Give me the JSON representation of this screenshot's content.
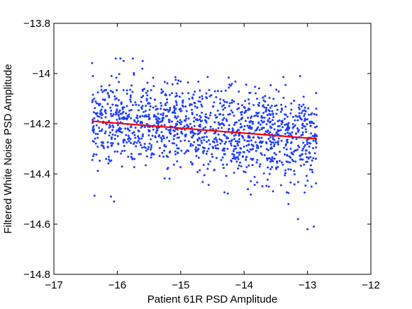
{
  "chart_data": {
    "type": "scatter",
    "xlabel": "Patient 61R PSD Amplitude",
    "ylabel": "Filtered White Noise PSD Amplitude",
    "xlim": [
      -17,
      -12
    ],
    "ylim": [
      -14.8,
      -13.8
    ],
    "x_ticks": [
      -17,
      -16,
      -15,
      -14,
      -13,
      -12
    ],
    "y_ticks": [
      -14.8,
      -14.6,
      -14.4,
      -14.2,
      -14,
      -13.8
    ],
    "x_tick_labels": [
      "−17",
      "−16",
      "−15",
      "−14",
      "−13",
      "−12"
    ],
    "y_tick_labels": [
      "−14.8",
      "−14.6",
      "−14.4",
      "−14.2",
      "−14",
      "−13.8"
    ],
    "grid": false,
    "legend": "none",
    "series": [
      {
        "kind": "points",
        "color": "#1f3fff",
        "n_points": 1400,
        "x_range": [
          -16.4,
          -12.85
        ],
        "y_center_at_x_min": -14.19,
        "y_center_at_x_max": -14.26,
        "y_spread": 0.085,
        "y_extremes": [
          -14.62,
          -13.94
        ],
        "outliers": [
          {
            "x": -15.95,
            "y": -13.94
          },
          {
            "x": -15.9,
            "y": -13.95
          },
          {
            "x": -15.6,
            "y": -13.95
          },
          {
            "x": -13.0,
            "y": -14.62
          },
          {
            "x": -12.9,
            "y": -14.61
          },
          {
            "x": -16.05,
            "y": -14.51
          },
          {
            "x": -16.1,
            "y": -14.49
          },
          {
            "x": -13.15,
            "y": -14.58
          },
          {
            "x": -13.3,
            "y": -14.52
          }
        ]
      },
      {
        "kind": "fit-line",
        "color": "#ff0000",
        "x": [
          -16.4,
          -12.85
        ],
        "y": [
          -14.19,
          -14.26
        ]
      }
    ]
  }
}
